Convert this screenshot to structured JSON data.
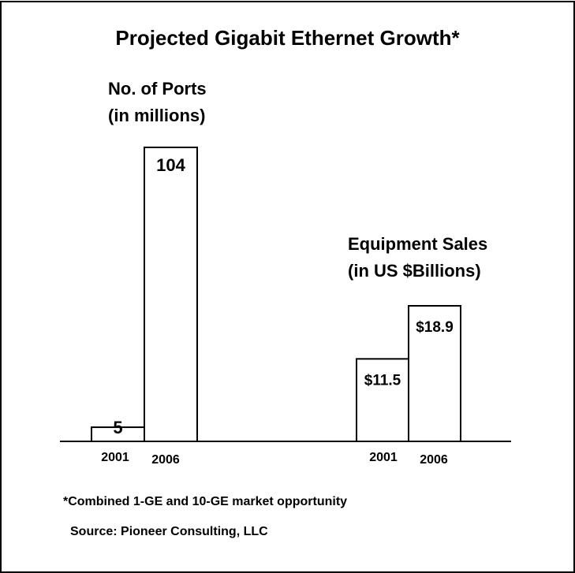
{
  "chart_data": {
    "type": "bar",
    "title": "Projected Gigabit Ethernet Growth*",
    "groups": [
      {
        "name": "ports",
        "label_lines": [
          "No. of Ports",
          "(in millions)"
        ],
        "categories": [
          "2001",
          "2006"
        ],
        "values": [
          5,
          104
        ],
        "value_labels": [
          "5",
          "104"
        ]
      },
      {
        "name": "sales",
        "label_lines": [
          "Equipment Sales",
          "(in US $Billions)"
        ],
        "categories": [
          "2001",
          "2006"
        ],
        "values": [
          11.5,
          18.9
        ],
        "value_labels": [
          "$11.5",
          "$18.9"
        ]
      }
    ],
    "bar_fill": "#ffffff",
    "bar_stroke": "#000000",
    "grid": false
  },
  "footnote": "*Combined 1-GE and 10-GE market opportunity",
  "source": "Source: Pioneer Consulting, LLC"
}
